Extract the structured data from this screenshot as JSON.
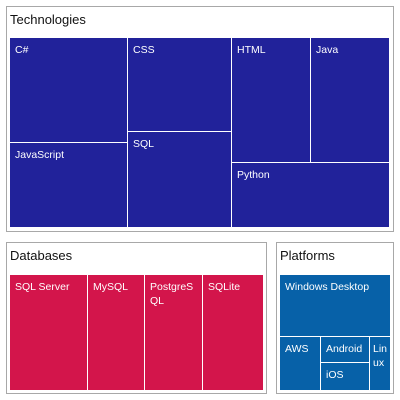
{
  "colors": {
    "technologies": "#21229a",
    "databases": "#d3154b",
    "platforms": "#0761a8",
    "divider": "#ffffff",
    "panel_border": "#a8a8a8"
  },
  "groups": {
    "technologies": {
      "title": "Technologies",
      "items": {
        "csharp": "C#",
        "css": "CSS",
        "html": "HTML",
        "java": "Java",
        "javascript": "JavaScript",
        "sql": "SQL",
        "python": "Python"
      }
    },
    "databases": {
      "title": "Databases",
      "items": {
        "sql_server": "SQL Server",
        "mysql": "MySQL",
        "postgresql": "PostgreSQL",
        "sqlite": "SQLite"
      }
    },
    "platforms": {
      "title": "Platforms",
      "items": {
        "windows_desktop": "Windows Desktop",
        "aws": "AWS",
        "android": "Android",
        "linux": "Linux",
        "ios": "iOS"
      }
    }
  }
}
